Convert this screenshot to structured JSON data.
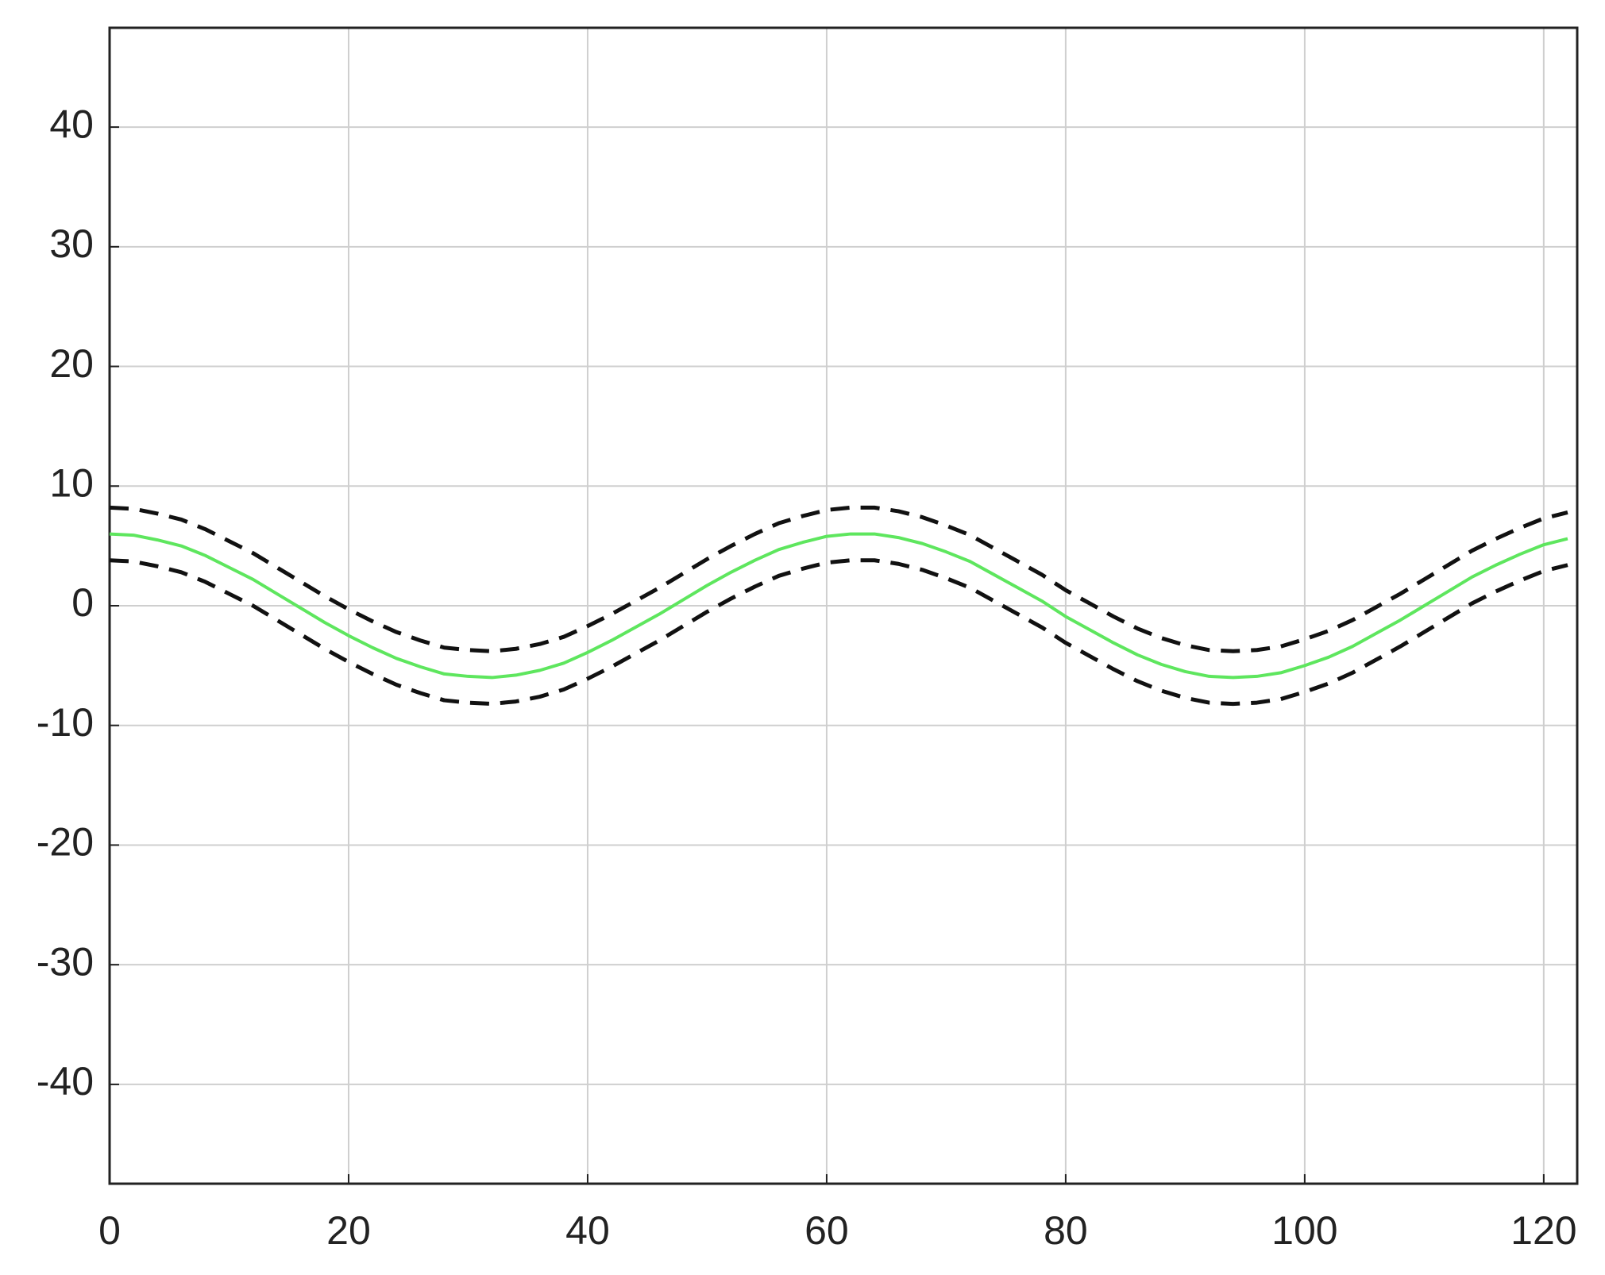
{
  "chart_data": {
    "type": "line",
    "x": [
      0,
      2,
      4,
      6,
      8,
      10,
      12,
      14,
      16,
      18,
      20,
      22,
      24,
      26,
      28,
      30,
      32,
      34,
      36,
      38,
      40,
      42,
      44,
      46,
      48,
      50,
      52,
      54,
      56,
      58,
      60,
      62,
      64,
      66,
      68,
      70,
      72,
      74,
      76,
      78,
      80,
      82,
      84,
      86,
      88,
      90,
      92,
      94,
      96,
      98,
      100,
      102,
      104,
      106,
      108,
      110,
      112,
      114,
      116,
      118,
      120,
      122
    ],
    "series": [
      {
        "color": "#111111",
        "line_style": "dashed",
        "values": [
          8.2,
          8.1,
          7.7,
          7.2,
          6.4,
          5.4,
          4.4,
          3.2,
          2.0,
          0.8,
          -0.3,
          -1.3,
          -2.2,
          -2.9,
          -3.5,
          -3.7,
          -3.8,
          -3.6,
          -3.2,
          -2.6,
          -1.7,
          -0.7,
          0.4,
          1.5,
          2.7,
          3.9,
          5.0,
          6.0,
          6.9,
          7.5,
          8.0,
          8.2,
          8.2,
          7.9,
          7.4,
          6.7,
          5.9,
          4.8,
          3.7,
          2.6,
          1.3,
          0.2,
          -0.9,
          -1.9,
          -2.7,
          -3.3,
          -3.7,
          -3.8,
          -3.7,
          -3.4,
          -2.8,
          -2.1,
          -1.2,
          -0.1,
          1.0,
          2.2,
          3.4,
          4.6,
          5.6,
          6.5,
          7.3,
          7.8
        ]
      },
      {
        "color": "#111111",
        "line_style": "dashed",
        "values": [
          3.8,
          3.7,
          3.3,
          2.8,
          2.0,
          1.0,
          0.0,
          -1.2,
          -2.4,
          -3.6,
          -4.7,
          -5.7,
          -6.6,
          -7.3,
          -7.9,
          -8.1,
          -8.2,
          -8.0,
          -7.6,
          -7.0,
          -6.1,
          -5.1,
          -4.0,
          -2.9,
          -1.7,
          -0.5,
          0.6,
          1.6,
          2.5,
          3.1,
          3.6,
          3.8,
          3.8,
          3.5,
          3.0,
          2.3,
          1.5,
          0.4,
          -0.7,
          -1.8,
          -3.1,
          -4.2,
          -5.3,
          -6.3,
          -7.1,
          -7.7,
          -8.1,
          -8.2,
          -8.1,
          -7.8,
          -7.2,
          -6.5,
          -5.6,
          -4.5,
          -3.4,
          -2.2,
          -1.0,
          0.2,
          1.2,
          2.1,
          2.9,
          3.4
        ]
      },
      {
        "color": "#5ee65e",
        "line_style": "solid",
        "values": [
          6.0,
          5.9,
          5.5,
          5.0,
          4.2,
          3.2,
          2.2,
          1.0,
          -0.2,
          -1.4,
          -2.5,
          -3.5,
          -4.4,
          -5.1,
          -5.7,
          -5.9,
          -6.0,
          -5.8,
          -5.4,
          -4.8,
          -3.9,
          -2.9,
          -1.8,
          -0.7,
          0.5,
          1.7,
          2.8,
          3.8,
          4.7,
          5.3,
          5.8,
          6.0,
          6.0,
          5.7,
          5.2,
          4.5,
          3.7,
          2.6,
          1.5,
          0.4,
          -0.9,
          -2.0,
          -3.1,
          -4.1,
          -4.9,
          -5.5,
          -5.9,
          -6.0,
          -5.9,
          -5.6,
          -5.0,
          -4.3,
          -3.4,
          -2.3,
          -1.2,
          0.0,
          1.2,
          2.4,
          3.4,
          4.3,
          5.1,
          5.6
        ]
      }
    ],
    "xlim": [
      0,
      122.8
    ],
    "xticks": [
      0,
      20,
      40,
      60,
      80,
      100,
      120
    ],
    "ylim": [
      -48.3,
      48.3
    ],
    "yticks": [
      -40,
      -30,
      -20,
      -10,
      0,
      10,
      20,
      30,
      40
    ],
    "grid": true
  }
}
